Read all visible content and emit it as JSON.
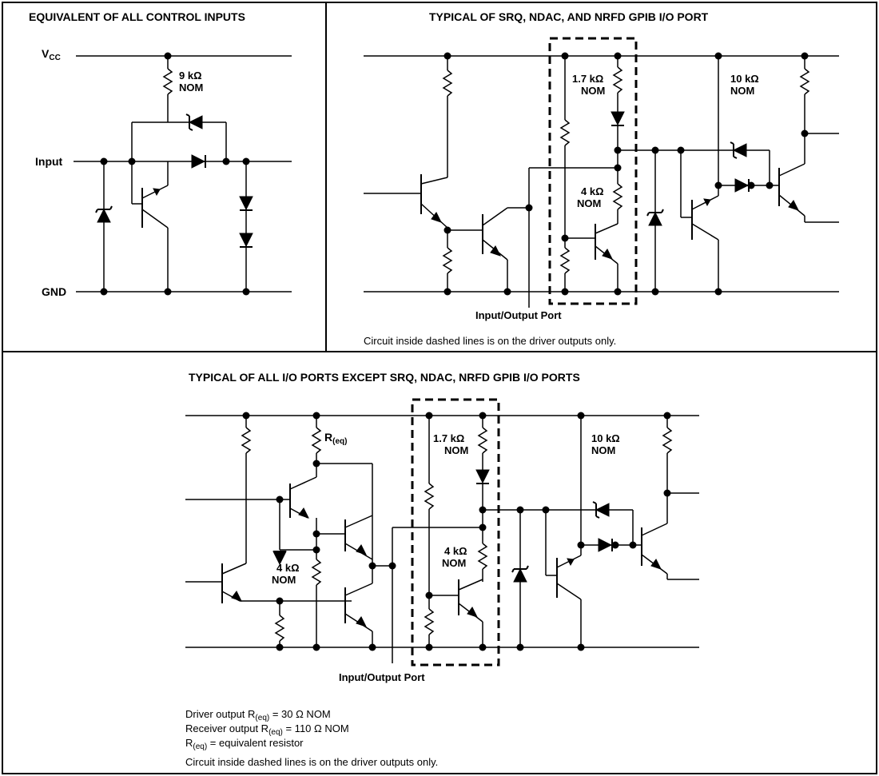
{
  "panels": {
    "control_inputs": {
      "title": "EQUIVALENT OF ALL CONTROL INPUTS",
      "vcc_main": "V",
      "vcc_sub": "CC",
      "input_label": "Input",
      "gnd_label": "GND",
      "resistor_value": "9 kΩ",
      "resistor_nom": "NOM"
    },
    "srq_port": {
      "title": "TYPICAL OF SRQ, NDAC, AND NRFD GPIB I/O PORT",
      "r1_value": "1.7 kΩ",
      "r1_nom": "NOM",
      "r2_value": "10 kΩ",
      "r2_nom": "NOM",
      "r3_value": "4 kΩ",
      "r3_nom": "NOM",
      "port_label": "Input/Output Port",
      "footnote": "Circuit inside dashed lines is on the driver outputs only."
    },
    "all_ports": {
      "title": "TYPICAL OF ALL I/O PORTS EXCEPT SRQ, NDAC, NRFD GPIB I/O PORTS",
      "req_main": "R",
      "req_sub": "(eq)",
      "r1_value": "1.7 kΩ",
      "r1_nom": "NOM",
      "r2_value": "10 kΩ",
      "r2_nom": "NOM",
      "r3_value": "4 kΩ",
      "r3_nom": "NOM",
      "r4_value": "4 kΩ",
      "r4_nom": "NOM",
      "port_label": "Input/Output Port",
      "notes": {
        "driver_pre": "Driver output R",
        "driver_sub": "(eq)",
        "driver_post": " = 30 Ω NOM",
        "receiver_pre": "Receiver output R",
        "receiver_sub": "(eq)",
        "receiver_post": " = 110 Ω NOM",
        "req_pre": "R",
        "req_sub": "(eq)",
        "req_post": " = equivalent resistor",
        "dashed": "Circuit inside dashed lines is on the driver outputs only."
      }
    }
  }
}
